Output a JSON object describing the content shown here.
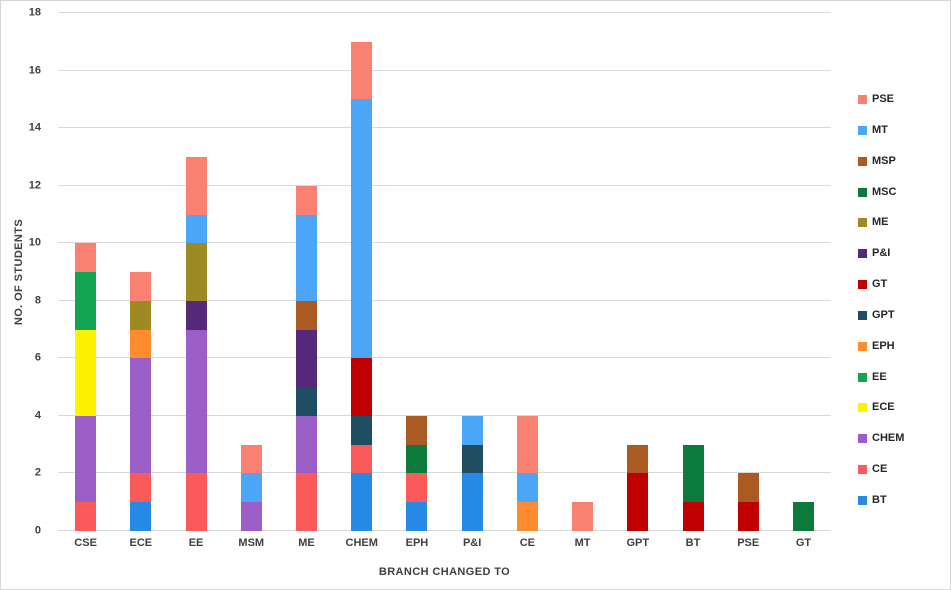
{
  "chart_data": {
    "type": "bar",
    "stacked": true,
    "title": "",
    "xlabel": "BRANCH CHANGED TO",
    "ylabel": "NO. OF STUDENTS",
    "ylim": [
      0,
      18
    ],
    "ytick_step": 2,
    "grid": true,
    "legend_position": "right",
    "categories": [
      "CSE",
      "ECE",
      "EE",
      "MSM",
      "ME",
      "CHEM",
      "EPH",
      "P&I",
      "CE",
      "MT",
      "GPT",
      "BT",
      "PSE",
      "GT"
    ],
    "series": [
      {
        "name": "BT",
        "color": "#2589E5",
        "values": [
          0,
          1,
          0,
          0,
          0,
          2,
          1,
          2,
          0,
          0,
          0,
          0,
          0,
          0
        ]
      },
      {
        "name": "CE",
        "color": "#FA5A5A",
        "values": [
          1,
          1,
          2,
          0,
          2,
          1,
          1,
          0,
          0,
          0,
          0,
          0,
          0,
          0
        ]
      },
      {
        "name": "CHEM",
        "color": "#9B5EC6",
        "values": [
          3,
          4,
          5,
          1,
          2,
          0,
          0,
          0,
          0,
          0,
          0,
          0,
          0,
          0
        ]
      },
      {
        "name": "ECE",
        "color": "#FFF100",
        "values": [
          3,
          0,
          0,
          0,
          0,
          0,
          0,
          0,
          0,
          0,
          0,
          0,
          0,
          0
        ]
      },
      {
        "name": "EE",
        "color": "#13A452",
        "values": [
          2,
          0,
          0,
          0,
          0,
          0,
          0,
          0,
          0,
          0,
          0,
          0,
          0,
          0
        ]
      },
      {
        "name": "EPH",
        "color": "#FF8C2E",
        "values": [
          0,
          1,
          0,
          0,
          0,
          0,
          0,
          0,
          1,
          0,
          0,
          0,
          0,
          0
        ]
      },
      {
        "name": "GPT",
        "color": "#1F4E63",
        "values": [
          0,
          0,
          0,
          0,
          1,
          1,
          0,
          1,
          0,
          0,
          0,
          0,
          0,
          0
        ]
      },
      {
        "name": "GT",
        "color": "#C00000",
        "values": [
          0,
          0,
          0,
          0,
          0,
          2,
          0,
          0,
          0,
          0,
          2,
          1,
          1,
          0
        ]
      },
      {
        "name": "P&I",
        "color": "#55287A",
        "values": [
          0,
          0,
          1,
          0,
          2,
          0,
          0,
          0,
          0,
          0,
          0,
          0,
          0,
          0
        ]
      },
      {
        "name": "ME",
        "color": "#9E8A22",
        "values": [
          0,
          1,
          2,
          0,
          0,
          0,
          0,
          0,
          0,
          0,
          0,
          0,
          0,
          0
        ]
      },
      {
        "name": "MSC",
        "color": "#0B7A3B",
        "values": [
          0,
          0,
          0,
          0,
          0,
          0,
          1,
          0,
          0,
          0,
          0,
          2,
          0,
          1
        ]
      },
      {
        "name": "MSP",
        "color": "#AA5A22",
        "values": [
          0,
          0,
          0,
          0,
          1,
          0,
          1,
          0,
          0,
          0,
          1,
          0,
          1,
          0
        ]
      },
      {
        "name": "MT",
        "color": "#4BA6F7",
        "values": [
          0,
          0,
          1,
          1,
          3,
          9,
          0,
          1,
          1,
          0,
          0,
          0,
          0,
          0
        ]
      },
      {
        "name": "PSE",
        "color": "#FA8072",
        "values": [
          1,
          1,
          2,
          1,
          1,
          2,
          0,
          0,
          2,
          1,
          0,
          0,
          0,
          0
        ]
      }
    ],
    "legend_order_top_to_bottom": [
      "PSE",
      "MT",
      "MSP",
      "MSC",
      "ME",
      "P&I",
      "GT",
      "GPT",
      "EPH",
      "EE",
      "ECE",
      "CHEM",
      "CE",
      "BT"
    ]
  },
  "axis": {
    "y_ticks": [
      "0",
      "2",
      "4",
      "6",
      "8",
      "10",
      "12",
      "14",
      "16",
      "18"
    ]
  }
}
